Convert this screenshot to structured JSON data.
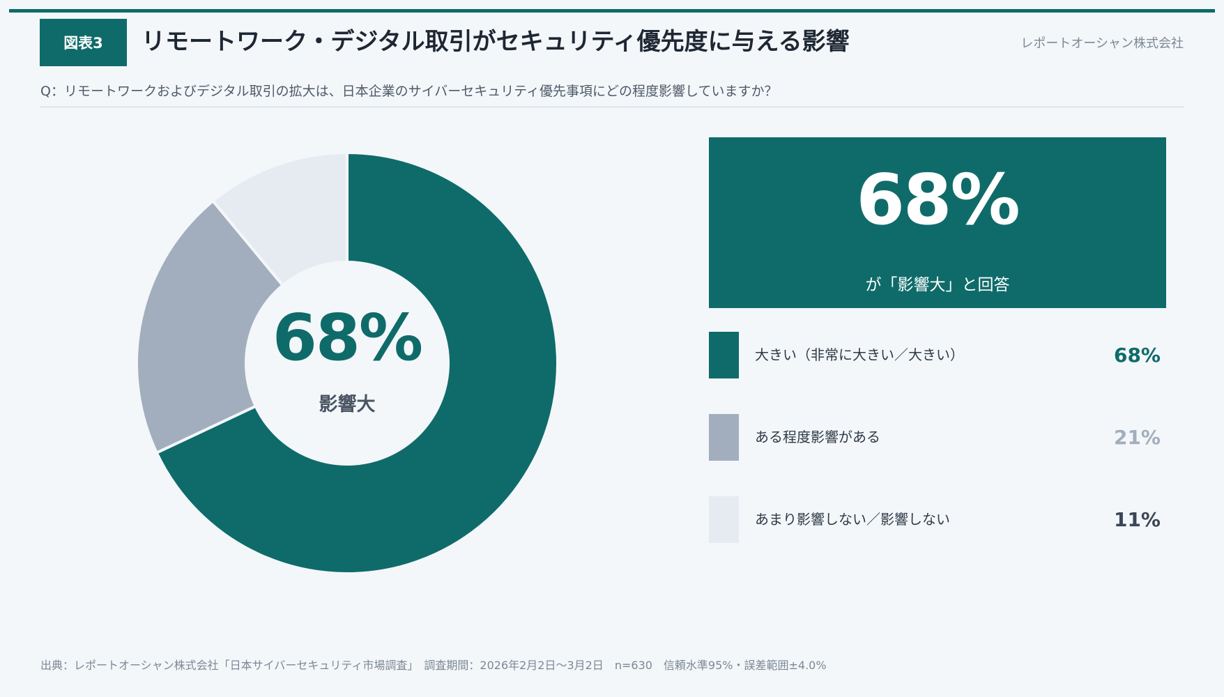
{
  "header": {
    "badge": "図表3",
    "title": "リモートワーク・デジタル取引がセキュリティ優先度に与える影響",
    "company": "レポートオーシャン株式会社",
    "question": "Q：リモートワークおよびデジタル取引の拡大は、日本企業のサイバーセキュリティ優先事項にどの程度影響していますか？"
  },
  "donut": {
    "center_value": "68%",
    "center_label": "影響大"
  },
  "callout": {
    "value": "68%",
    "text": "が「影響大」と回答"
  },
  "chart_data": {
    "type": "pie",
    "variant": "donut",
    "categories": [
      "大きい（非常に大きい／大きい）",
      "ある程度影響がある",
      "あまり影響しない／影響しない"
    ],
    "values": [
      68,
      21,
      11
    ],
    "unit": "%",
    "colors": [
      "#0f6b69",
      "#a2aebd",
      "#e6ebf2"
    ],
    "legend_pct_colors": [
      "#0f6b69",
      "#a2aebd",
      "#3b4656"
    ],
    "labels_display": [
      "68%",
      "21%",
      "11%"
    ],
    "legend_position": "right"
  },
  "footer": {
    "source": "出典：レポートオーシャン株式会社「日本サイバーセキュリティ市場調査」　調査期間：2026年2月2日〜3月2日　n=630　信頼水準95%・誤差範囲±4.0%"
  }
}
